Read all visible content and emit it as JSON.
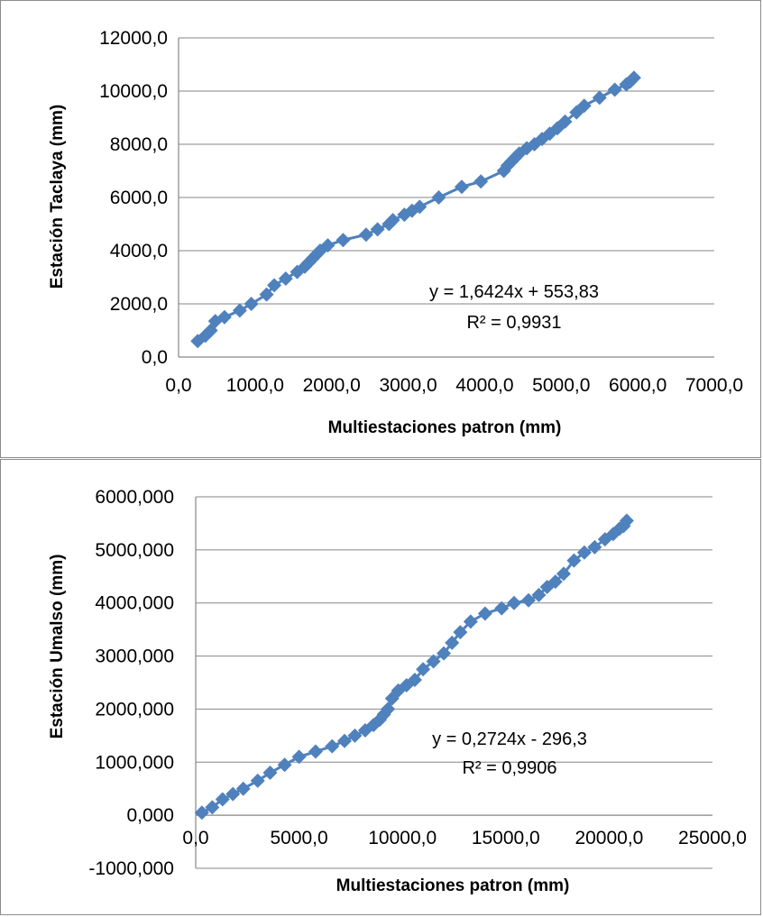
{
  "colors": {
    "marker": "#4f81bd",
    "grid": "#868686",
    "axis": "#868686",
    "frame": "#8c8c8c"
  },
  "chart_data": [
    {
      "type": "scatter",
      "xlabel": "Multiestaciones patron (mm)",
      "ylabel": "Estación Taclaya (mm)",
      "xlim": [
        0,
        7000
      ],
      "ylim": [
        0,
        12000
      ],
      "xticks": [
        "0,0",
        "1000,0",
        "2000,0",
        "3000,0",
        "4000,0",
        "5000,0",
        "6000,0",
        "7000,0"
      ],
      "yticks": [
        "0,0",
        "2000,0",
        "4000,0",
        "6000,0",
        "8000,0",
        "10000,0",
        "12000,0"
      ],
      "grid": true,
      "trendline": {
        "equation": "y = 1,6424x + 553,83",
        "r2": "R² = 0,9931"
      },
      "series": [
        {
          "x": [
            250,
            350,
            420,
            480,
            600,
            800,
            950,
            1150,
            1250,
            1400,
            1550,
            1650,
            1700,
            1750,
            1800,
            1850,
            1950,
            2150,
            2450,
            2600,
            2750,
            2800,
            2950,
            3050,
            3150,
            3400,
            3700,
            3950,
            4250,
            4300,
            4350,
            4400,
            4450,
            4550,
            4650,
            4750,
            4850,
            4950,
            5050,
            5200,
            5300,
            5500,
            5700,
            5850,
            5900,
            5950
          ],
          "y": [
            600,
            800,
            1000,
            1350,
            1500,
            1750,
            2000,
            2350,
            2700,
            2950,
            3200,
            3400,
            3550,
            3700,
            3850,
            4000,
            4200,
            4400,
            4600,
            4800,
            5000,
            5150,
            5350,
            5500,
            5650,
            6000,
            6400,
            6600,
            7000,
            7200,
            7350,
            7500,
            7650,
            7850,
            8000,
            8200,
            8400,
            8600,
            8850,
            9200,
            9450,
            9750,
            10050,
            10250,
            10350,
            10500
          ]
        }
      ]
    },
    {
      "type": "scatter",
      "xlabel": "Multiestaciones patron (mm)",
      "ylabel": "Estación Umalso (mm)",
      "xlim": [
        0,
        25000
      ],
      "ylim": [
        -1000,
        6000
      ],
      "xticks": [
        "0,0",
        "5000,0",
        "10000,0",
        "15000,0",
        "20000,0",
        "25000,0"
      ],
      "yticks": [
        "-1000,000",
        "0,000",
        "1000,000",
        "2000,000",
        "3000,000",
        "4000,000",
        "5000,000",
        "6000,000"
      ],
      "grid": true,
      "trendline": {
        "equation": "y = 0,2724x - 296,3",
        "r2": "R² = 0,9906"
      },
      "series": [
        {
          "x": [
            300,
            800,
            1300,
            1800,
            2300,
            3000,
            3600,
            4300,
            5000,
            5800,
            6600,
            7200,
            7700,
            8200,
            8600,
            8900,
            9100,
            9300,
            9500,
            9800,
            10200,
            10600,
            11000,
            11500,
            12000,
            12400,
            12800,
            13300,
            14000,
            14800,
            15400,
            16100,
            16600,
            17000,
            17400,
            17800,
            18300,
            18800,
            19300,
            19800,
            20200,
            20500,
            20700,
            20850
          ],
          "y": [
            50,
            150,
            300,
            400,
            500,
            650,
            800,
            950,
            1100,
            1200,
            1300,
            1400,
            1500,
            1600,
            1700,
            1800,
            1900,
            2000,
            2200,
            2350,
            2450,
            2550,
            2750,
            2900,
            3050,
            3250,
            3450,
            3650,
            3800,
            3900,
            4000,
            4050,
            4150,
            4300,
            4400,
            4550,
            4800,
            4950,
            5050,
            5200,
            5300,
            5400,
            5450,
            5550
          ]
        }
      ]
    }
  ]
}
